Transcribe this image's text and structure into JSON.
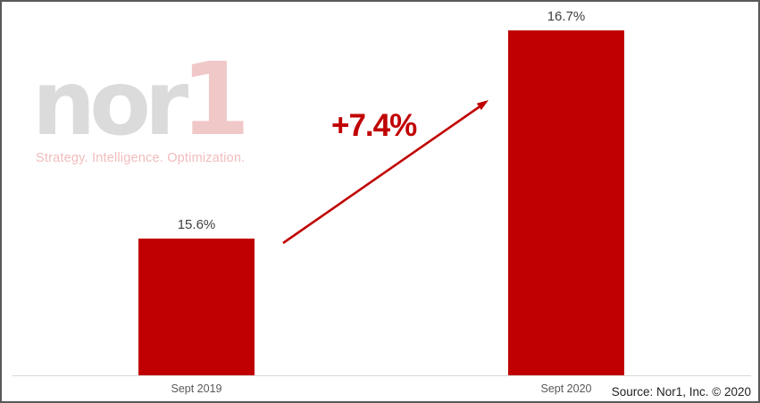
{
  "colors": {
    "bar-red": "#C00000",
    "accent-red": "#C00000",
    "logo-gray": "#DBDBDB",
    "logo-pink": "#F1C8C8",
    "tagline-pink": "#F2BCBC",
    "axis-line": "#D9D9D9",
    "value-label": "#404040",
    "category-label": "#595959",
    "border-gray": "#595959"
  },
  "logo": {
    "word": "nor",
    "numeral": "1",
    "tagline": "Strategy. Intelligence. Optimization."
  },
  "chart_data": {
    "type": "bar",
    "title": "",
    "categories": [
      "Sept 2019",
      "Sept 2020"
    ],
    "values": [
      15.6,
      16.7
    ],
    "value_labels": [
      "15.6%",
      "16.7%"
    ],
    "unit": "%",
    "ylim": [
      14.88,
      16.7
    ],
    "grid": false,
    "legend": false,
    "bar_color": "#C00000",
    "annotation": {
      "text": "+7.4%"
    }
  },
  "source": {
    "text": "Source: Nor1, Inc. © 2020"
  }
}
